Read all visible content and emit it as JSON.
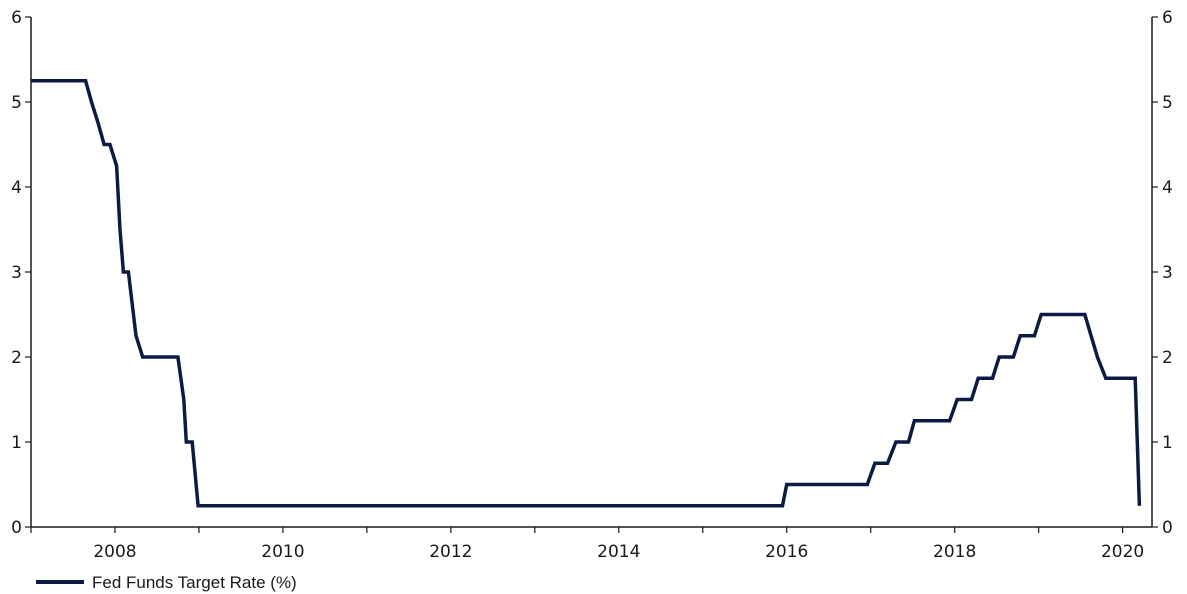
{
  "chart_data": {
    "type": "line",
    "title": "",
    "xlabel": "",
    "ylabel": "",
    "xlim": [
      2007.0,
      2020.35
    ],
    "ylim": [
      0,
      6
    ],
    "y_ticks": [
      0,
      1,
      2,
      3,
      4,
      5,
      6
    ],
    "x_ticks": [
      2008,
      2010,
      2012,
      2014,
      2016,
      2018,
      2020
    ],
    "y_axis_right": true,
    "grid": false,
    "legend_position": "bottom-left",
    "colors": {
      "series": "#0b1b43",
      "axis": "#1a1a1a"
    },
    "series": [
      {
        "name": "Fed Funds Target Rate (%)",
        "points": [
          [
            2007.0,
            5.25
          ],
          [
            2007.65,
            5.25
          ],
          [
            2007.72,
            5.0
          ],
          [
            2007.8,
            4.75
          ],
          [
            2007.87,
            4.5
          ],
          [
            2007.94,
            4.5
          ],
          [
            2008.02,
            4.25
          ],
          [
            2008.06,
            3.5
          ],
          [
            2008.1,
            3.0
          ],
          [
            2008.16,
            3.0
          ],
          [
            2008.25,
            2.25
          ],
          [
            2008.33,
            2.0
          ],
          [
            2008.75,
            2.0
          ],
          [
            2008.82,
            1.5
          ],
          [
            2008.85,
            1.0
          ],
          [
            2008.92,
            1.0
          ],
          [
            2008.99,
            0.25
          ],
          [
            2015.95,
            0.25
          ],
          [
            2016.0,
            0.5
          ],
          [
            2016.96,
            0.5
          ],
          [
            2017.05,
            0.75
          ],
          [
            2017.2,
            0.75
          ],
          [
            2017.3,
            1.0
          ],
          [
            2017.45,
            1.0
          ],
          [
            2017.52,
            1.25
          ],
          [
            2017.94,
            1.25
          ],
          [
            2018.03,
            1.5
          ],
          [
            2018.2,
            1.5
          ],
          [
            2018.28,
            1.75
          ],
          [
            2018.45,
            1.75
          ],
          [
            2018.53,
            2.0
          ],
          [
            2018.7,
            2.0
          ],
          [
            2018.78,
            2.25
          ],
          [
            2018.95,
            2.25
          ],
          [
            2019.03,
            2.5
          ],
          [
            2019.55,
            2.5
          ],
          [
            2019.7,
            2.0
          ],
          [
            2019.8,
            1.75
          ],
          [
            2020.15,
            1.75
          ],
          [
            2020.2,
            0.25
          ]
        ]
      }
    ]
  }
}
